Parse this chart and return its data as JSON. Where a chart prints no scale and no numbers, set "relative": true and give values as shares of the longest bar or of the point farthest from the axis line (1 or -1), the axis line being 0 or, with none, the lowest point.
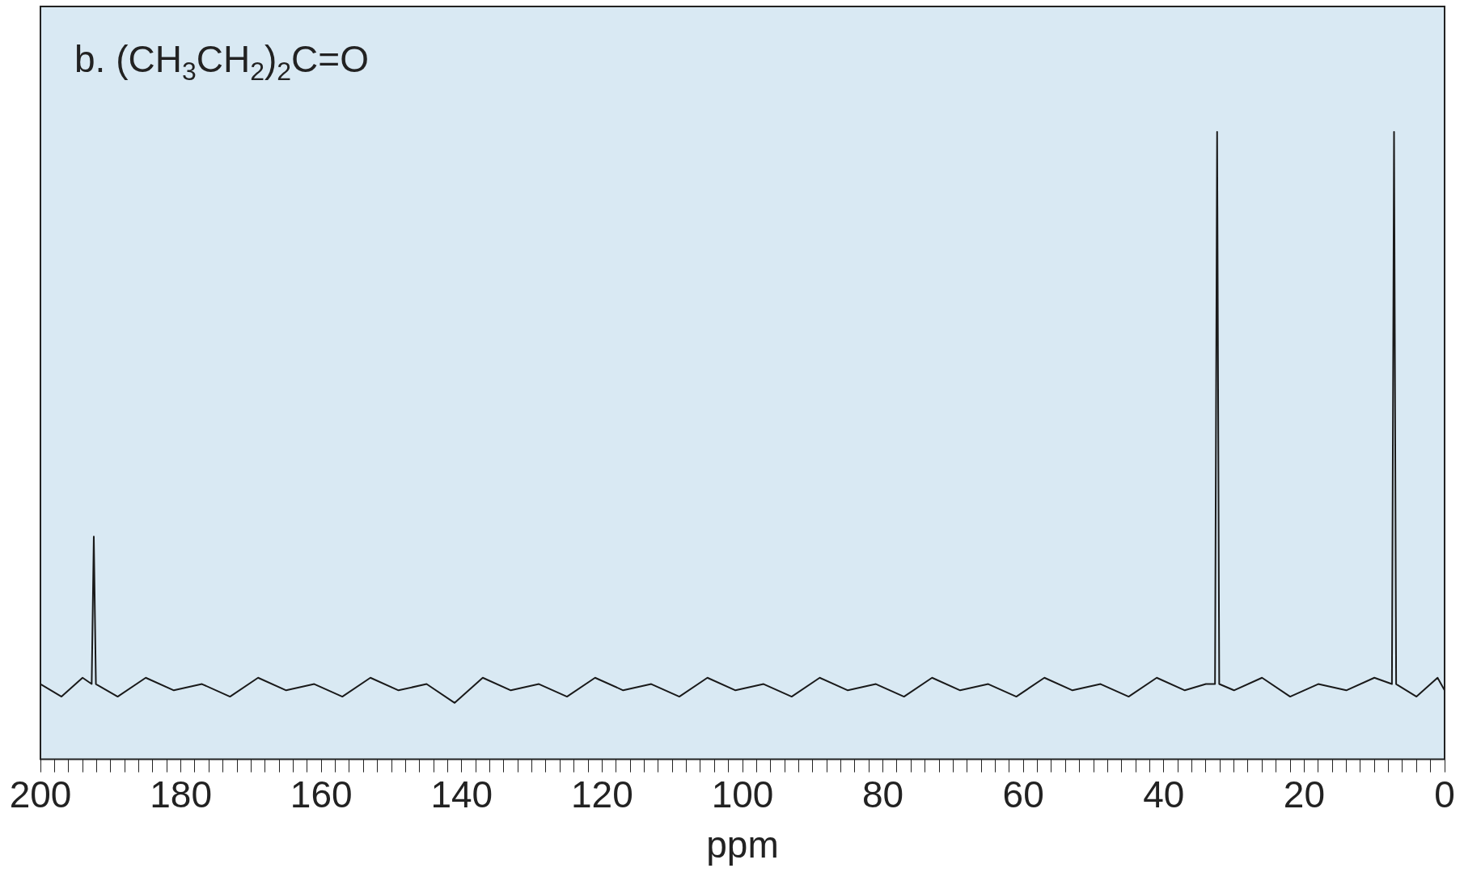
{
  "chart_data": {
    "type": "line",
    "title": "b. (CH$_{3}$CH$_{2}$)$_{2}$C=O",
    "xlabel": "ppm",
    "relative": true,
    "xlim": [
      200,
      0
    ],
    "xticks": [
      0,
      {
        "value": 2,
        "label": null
      },
      {
        "value": 4,
        "label": null
      },
      {
        "value": 6,
        "label": null
      },
      {
        "value": 8,
        "label": null
      },
      {
        "value": 10,
        "label": null
      },
      {
        "value": 12,
        "label": null
      },
      {
        "value": 14,
        "label": null
      },
      {
        "value": 16,
        "label": null
      },
      {
        "value": 18,
        "label": null
      },
      20,
      {
        "value": 22,
        "label": null
      },
      {
        "value": 24,
        "label": null
      },
      {
        "value": 26,
        "label": null
      },
      {
        "value": 28,
        "label": null
      },
      {
        "value": 30,
        "label": null
      },
      {
        "value": 32,
        "label": null
      },
      {
        "value": 34,
        "label": null
      },
      {
        "value": 36,
        "label": null
      },
      {
        "value": 38,
        "label": null
      },
      40,
      {
        "value": 42,
        "label": null
      },
      {
        "value": 44,
        "label": null
      },
      {
        "value": 46,
        "label": null
      },
      {
        "value": 48,
        "label": null
      },
      {
        "value": 50,
        "label": null
      },
      {
        "value": 52,
        "label": null
      },
      {
        "value": 54,
        "label": null
      },
      {
        "value": 56,
        "label": null
      },
      {
        "value": 58,
        "label": null
      },
      60,
      {
        "value": 62,
        "label": null
      },
      {
        "value": 64,
        "label": null
      },
      {
        "value": 66,
        "label": null
      },
      {
        "value": 68,
        "label": null
      },
      {
        "value": 70,
        "label": null
      },
      {
        "value": 72,
        "label": null
      },
      {
        "value": 74,
        "label": null
      },
      {
        "value": 76,
        "label": null
      },
      {
        "value": 78,
        "label": null
      },
      80,
      {
        "value": 82,
        "label": null
      },
      {
        "value": 84,
        "label": null
      },
      {
        "value": 86,
        "label": null
      },
      {
        "value": 88,
        "label": null
      },
      {
        "value": 90,
        "label": null
      },
      {
        "value": 92,
        "label": null
      },
      {
        "value": 94,
        "label": null
      },
      {
        "value": 96,
        "label": null
      },
      {
        "value": 98,
        "label": null
      },
      100,
      {
        "value": 102,
        "label": null
      },
      {
        "value": 104,
        "label": null
      },
      {
        "value": 106,
        "label": null
      },
      {
        "value": 108,
        "label": null
      },
      {
        "value": 110,
        "label": null
      },
      {
        "value": 112,
        "label": null
      },
      {
        "value": 114,
        "label": null
      },
      {
        "value": 116,
        "label": null
      },
      {
        "value": 118,
        "label": null
      },
      120,
      {
        "value": 122,
        "label": null
      },
      {
        "value": 124,
        "label": null
      },
      {
        "value": 126,
        "label": null
      },
      {
        "value": 128,
        "label": null
      },
      {
        "value": 130,
        "label": null
      },
      {
        "value": 132,
        "label": null
      },
      {
        "value": 134,
        "label": null
      },
      {
        "value": 136,
        "label": null
      },
      {
        "value": 138,
        "label": null
      },
      140,
      {
        "value": 142,
        "label": null
      },
      {
        "value": 144,
        "label": null
      },
      {
        "value": 146,
        "label": null
      },
      {
        "value": 148,
        "label": null
      },
      {
        "value": 150,
        "label": null
      },
      {
        "value": 152,
        "label": null
      },
      {
        "value": 154,
        "label": null
      },
      {
        "value": 156,
        "label": null
      },
      {
        "value": 158,
        "label": null
      },
      160,
      {
        "value": 162,
        "label": null
      },
      {
        "value": 164,
        "label": null
      },
      {
        "value": 166,
        "label": null
      },
      {
        "value": 168,
        "label": null
      },
      {
        "value": 170,
        "label": null
      },
      {
        "value": 172,
        "label": null
      },
      {
        "value": 174,
        "label": null
      },
      {
        "value": 176,
        "label": null
      },
      {
        "value": 178,
        "label": null
      },
      180,
      {
        "value": 182,
        "label": null
      },
      {
        "value": 184,
        "label": null
      },
      {
        "value": 186,
        "label": null
      },
      {
        "value": 188,
        "label": null
      },
      {
        "value": 190,
        "label": null
      },
      {
        "value": 192,
        "label": null
      },
      {
        "value": 194,
        "label": null
      },
      {
        "value": 196,
        "label": null
      },
      {
        "value": 198,
        "label": null
      },
      200
    ],
    "grid": false,
    "legend": false,
    "marker": "none",
    "line_style": "solid",
    "series": [
      {
        "color": "#1a1a1a",
        "x": [
          200,
          197,
          194,
          192.7,
          192.4,
          192.1,
          189,
          185,
          181,
          177,
          173,
          169,
          165,
          161,
          157,
          153,
          149,
          145,
          141,
          137,
          133,
          129,
          125,
          121,
          117,
          113,
          109,
          105,
          101,
          97,
          93,
          89,
          85,
          81,
          77,
          73,
          69,
          65,
          61,
          57,
          53,
          49,
          45,
          41,
          37,
          34,
          32.7,
          32.4,
          32.1,
          30,
          26,
          22,
          18,
          14,
          10,
          7.5,
          7.2,
          6.9,
          4,
          1,
          0
        ],
        "values": [
          0.12,
          0.1,
          0.13,
          0.12,
          0.355,
          0.12,
          0.1,
          0.13,
          0.11,
          0.12,
          0.1,
          0.13,
          0.11,
          0.12,
          0.1,
          0.13,
          0.11,
          0.12,
          0.09,
          0.13,
          0.11,
          0.12,
          0.1,
          0.13,
          0.11,
          0.12,
          0.1,
          0.13,
          0.11,
          0.12,
          0.1,
          0.13,
          0.11,
          0.12,
          0.1,
          0.13,
          0.11,
          0.12,
          0.1,
          0.13,
          0.11,
          0.12,
          0.1,
          0.13,
          0.11,
          0.12,
          0.12,
          1,
          0.12,
          0.11,
          0.13,
          0.1,
          0.12,
          0.11,
          0.13,
          0.12,
          1,
          0.12,
          0.1,
          0.13,
          0.11
        ]
      }
    ]
  }
}
